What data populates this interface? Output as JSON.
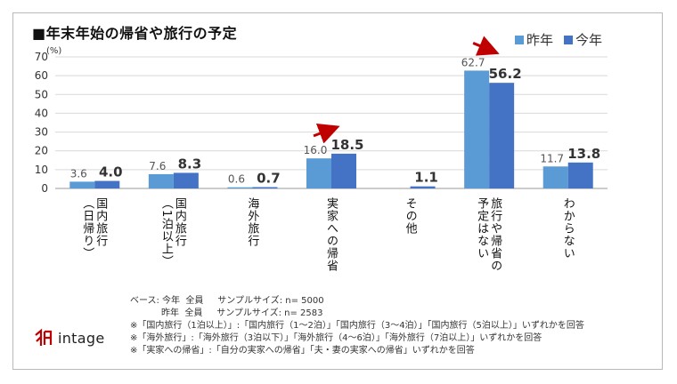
{
  "chart_data": {
    "type": "bar",
    "title": "■年末年始の帰省や旅行の予定",
    "ylabel": "(%)",
    "ylim": [
      0,
      70
    ],
    "yticks": [
      "0",
      "10",
      "20",
      "30",
      "40",
      "50",
      "60",
      "70"
    ],
    "categories": [
      [
        "国内旅行",
        "（日帰り）"
      ],
      [
        "国内旅行",
        "（1泊以上）"
      ],
      [
        "海外旅行"
      ],
      [
        "実家への帰省"
      ],
      [
        "その他"
      ],
      [
        "旅行や帰省の",
        "予定はない"
      ],
      [
        "わからない"
      ]
    ],
    "series": [
      {
        "name": "昨年",
        "values": [
          3.6,
          7.6,
          0.6,
          16.0,
          null,
          62.7,
          11.7
        ],
        "labels": [
          "3.6",
          "7.6",
          "0.6",
          "16.0",
          "",
          "62.7",
          "11.7"
        ]
      },
      {
        "name": "今年",
        "values": [
          4.0,
          8.3,
          0.7,
          18.5,
          1.1,
          56.2,
          13.8
        ],
        "labels": [
          "4.0",
          "8.3",
          "0.7",
          "18.5",
          "1.1",
          "56.2",
          "13.8"
        ]
      }
    ],
    "annotations": [
      {
        "type": "arrow",
        "category": "実家への帰省",
        "direction": "up"
      },
      {
        "type": "arrow",
        "category": "旅行や帰省の予定はない",
        "direction": "down"
      }
    ]
  },
  "colors": {
    "last_year": "#5b9bd5",
    "this_year": "#4472c4",
    "arrow": "#c00000",
    "grid": "#d9d9d9"
  },
  "notes": {
    "sample_this_year": "ベース: 今年  全員     サンプルサイズ: n= 5000",
    "sample_last_year": "           昨年  全員     サンプルサイズ: n= 2583",
    "note1": "※「国内旅行（1泊以上）」:「国内旅行（1～2泊）」「国内旅行（3～4泊）」「国内旅行（5泊以上）」いずれかを回答",
    "note2": "※「海外旅行」:「海外旅行（3泊以下）」「海外旅行（4～6泊）」「海外旅行（7泊以上）」いずれかを回答",
    "note3": "※「実家への帰省」:「自分の実家への帰省」「夫・妻の実家への帰省」いずれかを回答"
  },
  "logo": {
    "text": "intage",
    "icon": "intage-logo-icon"
  }
}
